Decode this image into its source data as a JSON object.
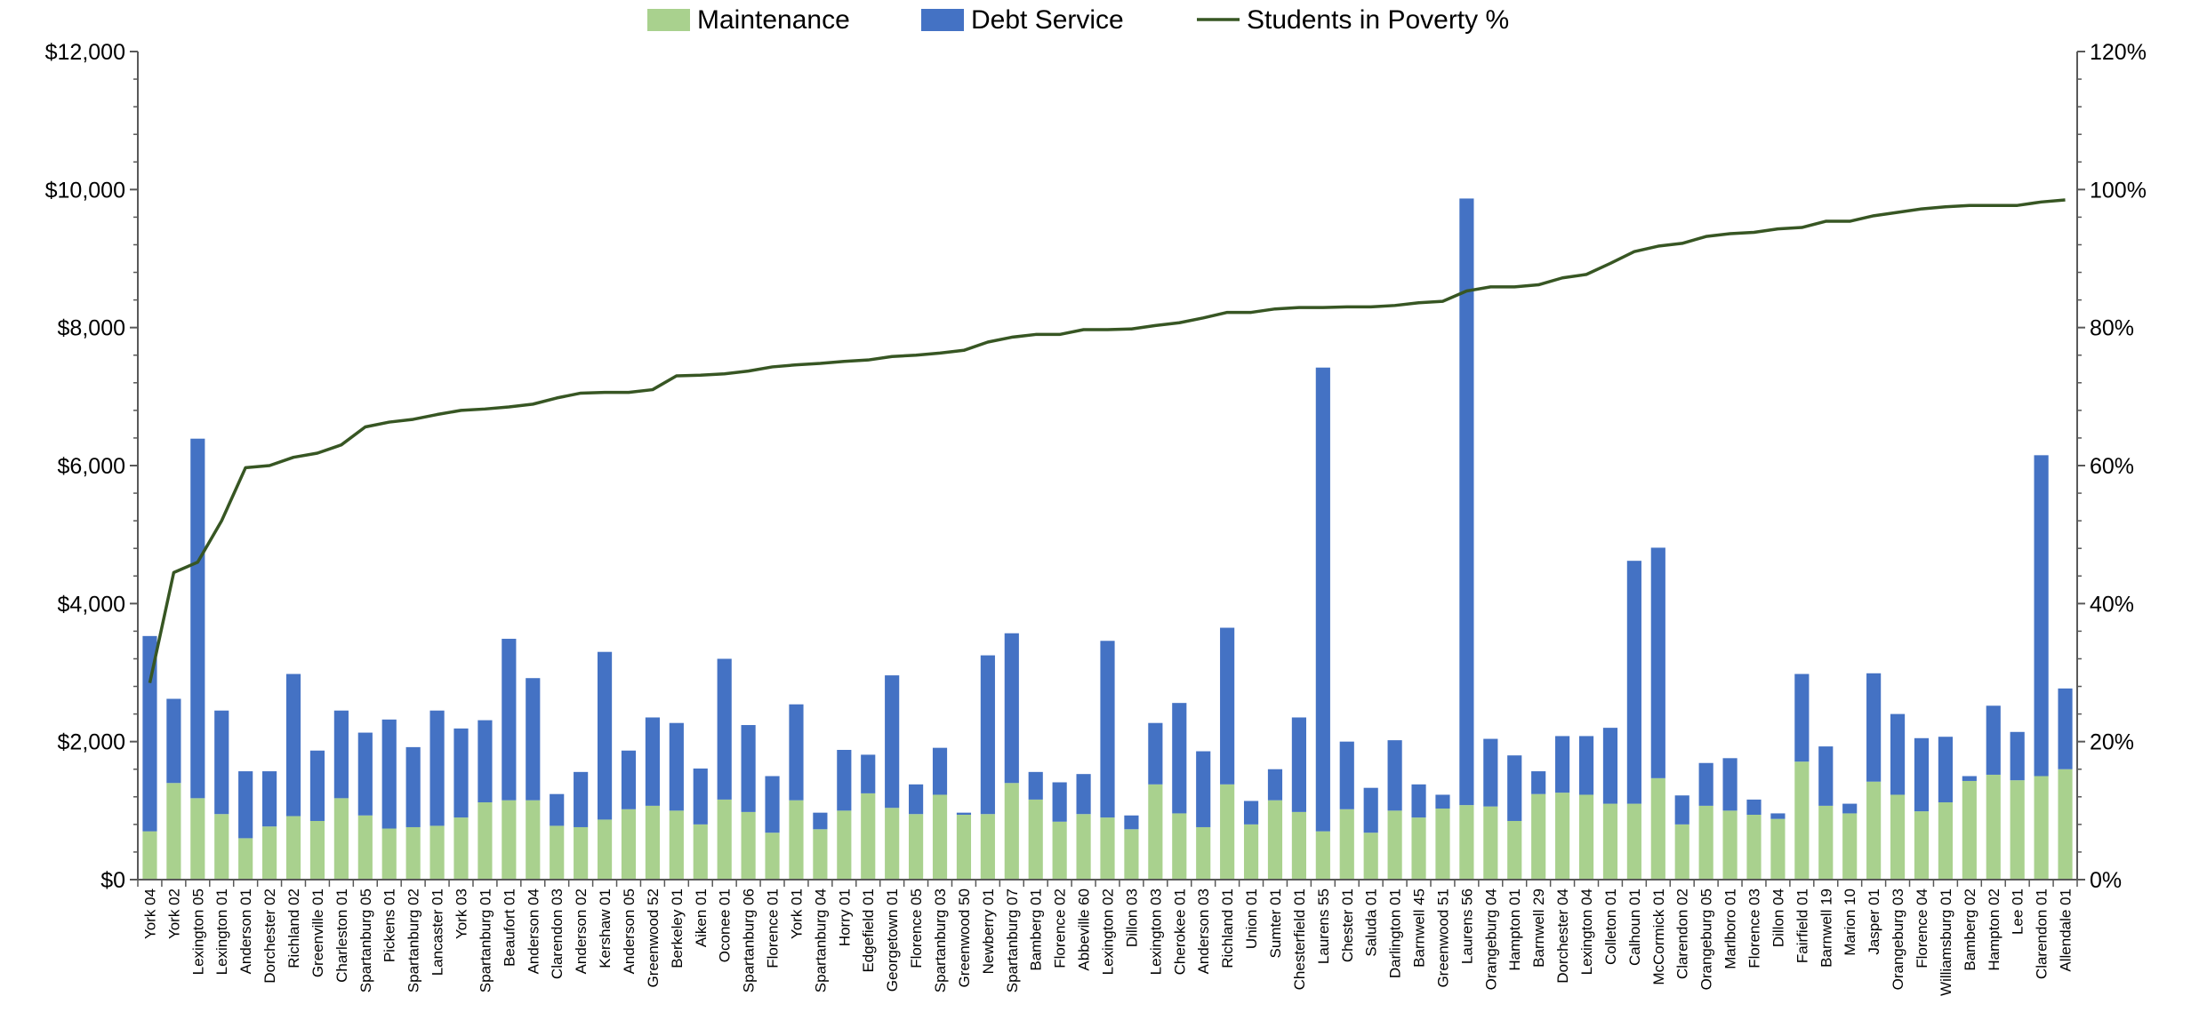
{
  "chart_data": {
    "type": "bar",
    "stacked": true,
    "legend": {
      "position": "top",
      "items": [
        {
          "label": "Maintenance",
          "color": "#a9d18e",
          "kind": "bar"
        },
        {
          "label": "Debt Service",
          "color": "#4472c4",
          "kind": "bar"
        },
        {
          "label": "Students in Poverty %",
          "color": "#375623",
          "kind": "line"
        }
      ]
    },
    "y_left": {
      "min": 0,
      "max": 12000,
      "step": 2000,
      "tick_labels": [
        "$0",
        "$2,000",
        "$4,000",
        "$6,000",
        "$8,000",
        "$10,000",
        "$12,000"
      ]
    },
    "y_right": {
      "min": 0,
      "max": 120,
      "step": 20,
      "tick_labels": [
        "0%",
        "20%",
        "40%",
        "60%",
        "80%",
        "100%",
        "120%"
      ]
    },
    "grid": false,
    "categories": [
      "York 04",
      "York 02",
      "Lexington 05",
      "Lexington 01",
      "Anderson 01",
      "Dorchester 02",
      "Richland 02",
      "Greenville 01",
      "Charleston 01",
      "Spartanburg 05",
      "Pickens 01",
      "Spartanburg 02",
      "Lancaster 01",
      "York 03",
      "Spartanburg 01",
      "Beaufort 01",
      "Anderson 04",
      "Clarendon 03",
      "Anderson 02",
      "Kershaw 01",
      "Anderson 05",
      "Greenwood 52",
      "Berkeley 01",
      "Aiken 01",
      "Oconee 01",
      "Spartanburg 06",
      "Florence 01",
      "York 01",
      "Spartanburg 04",
      "Horry 01",
      "Edgefield 01",
      "Georgetown 01",
      "Florence 05",
      "Spartanburg 03",
      "Greenwood 50",
      "Newberry 01",
      "Spartanburg 07",
      "Bamberg 01",
      "Florence 02",
      "Abbeville 60",
      "Lexington 02",
      "Dillon 03",
      "Lexington 03",
      "Cherokee 01",
      "Anderson 03",
      "Richland 01",
      "Union 01",
      "Sumter 01",
      "Chesterfield 01",
      "Laurens 55",
      "Chester 01",
      "Saluda 01",
      "Darlington 01",
      "Barnwell 45",
      "Greenwood 51",
      "Laurens 56",
      "Orangeburg 04",
      "Hampton 01",
      "Barnwell 29",
      "Dorchester 04",
      "Lexington 04",
      "Colleton 01",
      "Calhoun 01",
      "McCormick 01",
      "Clarendon 02",
      "Orangeburg 05",
      "Marlboro 01",
      "Florence 03",
      "Dillon 04",
      "Fairfield 01",
      "Barnwell 19",
      "Marion 10",
      "Jasper 01",
      "Orangeburg 03",
      "Florence 04",
      "Williamsburg 01",
      "Bamberg 02",
      "Hampton 02",
      "Lee 01",
      "Clarendon 01",
      "Allendale 01"
    ],
    "series": [
      {
        "name": "Maintenance",
        "type": "bar",
        "axis": "left",
        "values": [
          700,
          1400,
          1180,
          950,
          600,
          770,
          920,
          850,
          1180,
          930,
          740,
          760,
          780,
          900,
          1120,
          1150,
          1150,
          780,
          760,
          870,
          1020,
          1070,
          1000,
          800,
          1160,
          980,
          680,
          1150,
          730,
          1000,
          1250,
          1040,
          950,
          1230,
          940,
          950,
          1400,
          1160,
          840,
          950,
          900,
          730,
          1380,
          960,
          760,
          1380,
          800,
          1150,
          980,
          700,
          1020,
          680,
          1000,
          900,
          1030,
          1080,
          1060,
          850,
          1240,
          1260,
          1230,
          1100,
          1100,
          1470,
          800,
          1070,
          1000,
          940,
          880,
          1710,
          1070,
          960,
          1420,
          1230,
          990,
          1120,
          1430,
          1520,
          1440,
          1500,
          1600
        ]
      },
      {
        "name": "Debt Service",
        "type": "bar",
        "axis": "left",
        "values": [
          2830,
          1220,
          5210,
          1500,
          970,
          800,
          2060,
          1020,
          1270,
          1200,
          1580,
          1160,
          1670,
          1290,
          1190,
          2340,
          1770,
          460,
          800,
          2430,
          850,
          1280,
          1270,
          810,
          2040,
          1260,
          820,
          1390,
          240,
          880,
          560,
          1920,
          430,
          680,
          30,
          2300,
          2170,
          400,
          570,
          580,
          2560,
          200,
          890,
          1600,
          1100,
          2270,
          340,
          450,
          1370,
          6720,
          980,
          650,
          1020,
          480,
          200,
          8790,
          980,
          950,
          330,
          820,
          850,
          1100,
          3520,
          3340,
          420,
          620,
          760,
          220,
          80,
          1270,
          860,
          140,
          1570,
          1170,
          1060,
          950,
          70,
          1000,
          700,
          4650,
          1170
        ]
      },
      {
        "name": "Students in Poverty %",
        "type": "line",
        "axis": "right",
        "values": [
          28.5,
          44.5,
          46,
          52,
          59.7,
          60,
          61.2,
          61.8,
          63,
          65.6,
          66.3,
          66.7,
          67.4,
          68,
          68.2,
          68.5,
          68.9,
          69.8,
          70.5,
          70.6,
          70.6,
          71,
          73,
          73.1,
          73.3,
          73.7,
          74.3,
          74.6,
          74.8,
          75.1,
          75.3,
          75.8,
          76,
          76.3,
          76.7,
          77.9,
          78.6,
          79,
          79,
          79.7,
          79.7,
          79.8,
          80.3,
          80.7,
          81.4,
          82.2,
          82.2,
          82.7,
          82.9,
          82.9,
          83,
          83,
          83.2,
          83.6,
          83.8,
          85.3,
          85.9,
          85.9,
          86.2,
          87.2,
          87.7,
          89.3,
          91,
          91.8,
          92.2,
          93.2,
          93.6,
          93.8,
          94.3,
          94.5,
          95.4,
          95.4,
          96.2,
          96.7,
          97.2,
          97.5,
          97.7,
          97.7,
          97.7,
          98.2,
          98.5
        ]
      }
    ]
  }
}
